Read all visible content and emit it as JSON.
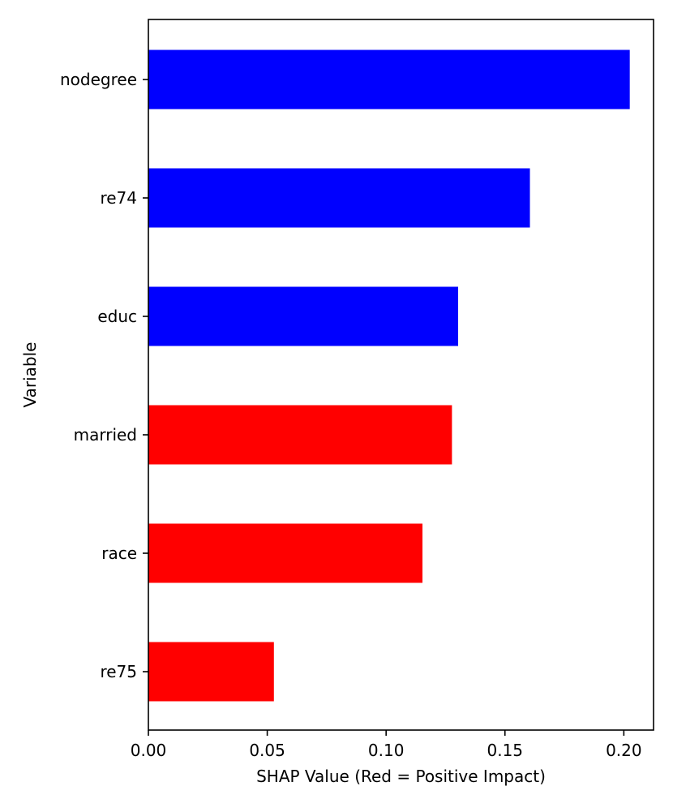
{
  "chart_data": {
    "type": "bar",
    "orientation": "horizontal",
    "categories": [
      "nodegree",
      "re74",
      "educ",
      "married",
      "race",
      "re75"
    ],
    "values": [
      0.2025,
      0.1605,
      0.1303,
      0.1277,
      0.1153,
      0.0528
    ],
    "impact": [
      "negative",
      "negative",
      "negative",
      "positive",
      "positive",
      "positive"
    ],
    "xlabel": "SHAP Value (Red = Positive Impact)",
    "ylabel": "Variable",
    "xlim": [
      0.0,
      0.2125
    ],
    "xticks": [
      0.0,
      0.05,
      0.1,
      0.15,
      0.2
    ],
    "xtick_labels": [
      "0.00",
      "0.05",
      "0.10",
      "0.15",
      "0.20"
    ],
    "grid": false,
    "legend": "none",
    "colors": {
      "positive": "#ff0000",
      "negative": "#0000ff",
      "axis": "#000000"
    }
  }
}
